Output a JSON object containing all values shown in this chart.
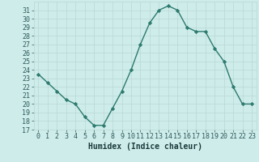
{
  "x": [
    0,
    1,
    2,
    3,
    4,
    5,
    6,
    7,
    8,
    9,
    10,
    11,
    12,
    13,
    14,
    15,
    16,
    17,
    18,
    19,
    20,
    21,
    22,
    23
  ],
  "y": [
    23.5,
    22.5,
    21.5,
    20.5,
    20.0,
    18.5,
    17.5,
    17.5,
    19.5,
    21.5,
    24.0,
    27.0,
    29.5,
    31.0,
    31.5,
    31.0,
    29.0,
    28.5,
    28.5,
    26.5,
    25.0,
    22.0,
    20.0,
    20.0
  ],
  "xlabel": "Humidex (Indice chaleur)",
  "ylim": [
    17,
    32
  ],
  "xlim": [
    -0.5,
    23.5
  ],
  "yticks": [
    17,
    18,
    19,
    20,
    21,
    22,
    23,
    24,
    25,
    26,
    27,
    28,
    29,
    30,
    31
  ],
  "xticks": [
    0,
    1,
    2,
    3,
    4,
    5,
    6,
    7,
    8,
    9,
    10,
    11,
    12,
    13,
    14,
    15,
    16,
    17,
    18,
    19,
    20,
    21,
    22,
    23
  ],
  "line_color": "#2d7a6e",
  "marker_color": "#2d7a6e",
  "bg_color": "#ceecea",
  "grid_color": "#b8d8d5",
  "tick_label_color": "#2d5a5a",
  "xlabel_color": "#1a3a3a",
  "xlabel_fontsize": 7,
  "tick_fontsize": 6
}
